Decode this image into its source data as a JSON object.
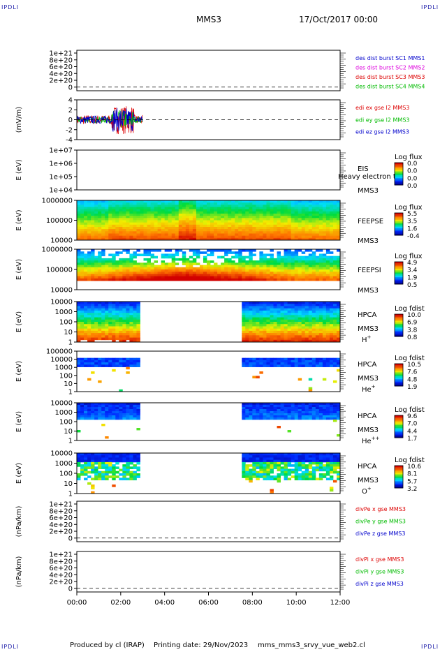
{
  "corner_label": "IPDLI",
  "header": {
    "spacecraft": "MMS3",
    "date": "17/Oct/2017 00:00"
  },
  "footer": {
    "producer": "Produced by cl (IRAP)",
    "printing": "Printing date: 29/Nov/2023",
    "script": "mms_mms3_srvy_vue_web2.cl"
  },
  "colors": {
    "red": "#dd0000",
    "green": "#00bb00",
    "blue": "#0000cc",
    "magenta": "#dd00dd"
  },
  "chart_data": [
    {
      "type": "line",
      "ylabel": "",
      "ticks": [
        "1e+21",
        "8e+20",
        "6e+20",
        "4e+20",
        "2e+20",
        "0"
      ],
      "series": [
        {
          "name": "des dist burst SC1 MMS1",
          "color": "#0000cc"
        },
        {
          "name": "des dist burst SC2 MMS2",
          "color": "#dd00dd"
        },
        {
          "name": "des dist burst SC3 MMS3",
          "color": "#dd0000"
        },
        {
          "name": "des dist burst SC4 MMS4",
          "color": "#00bb00"
        }
      ]
    },
    {
      "type": "line",
      "ylabel": "(mV/m)",
      "ticks": [
        "4",
        "2",
        "0",
        "-2",
        "-4"
      ],
      "ylim": [
        -5,
        5
      ],
      "x_range_hours": [
        0.0,
        3.0
      ],
      "series": [
        {
          "name": "edi ex gse l2 MMS3",
          "color": "#dd0000"
        },
        {
          "name": "edi ey gse l2 MMS3",
          "color": "#00bb00"
        },
        {
          "name": "edi ez gse l2 MMS3",
          "color": "#0000cc"
        }
      ]
    },
    {
      "type": "heatmap",
      "ylabel": "E (eV)",
      "ticks": [
        "1e+07",
        "1e+06",
        "1e+05",
        "1e+04"
      ],
      "instrument": [
        "EIS",
        "MMS3"
      ],
      "overlay": "Heavy electron to",
      "colorbar": {
        "title": "Log flux",
        "labels": [
          "0.0",
          "0.0",
          "0.0",
          "0.0"
        ]
      }
    },
    {
      "type": "heatmap",
      "ylabel": "E (eV)",
      "ticks": [
        "1000000",
        "100000",
        "10000"
      ],
      "instrument": [
        "FEEPSE",
        "MMS3"
      ],
      "colorbar": {
        "title": "Log flux",
        "labels": [
          "5.5",
          "3.5",
          "1.6",
          "-0.4"
        ]
      }
    },
    {
      "type": "heatmap",
      "ylabel": "E (eV)",
      "ticks": [
        "1000000",
        "100000",
        "10000"
      ],
      "instrument": [
        "FEEPSI",
        "MMS3"
      ],
      "colorbar": {
        "title": "Log flux",
        "labels": [
          "4.9",
          "3.4",
          "1.9",
          "0.5"
        ]
      }
    },
    {
      "type": "heatmap",
      "ylabel": "E (eV)",
      "ticks": [
        "10000",
        "1000",
        "100",
        "10",
        "1"
      ],
      "instrument": [
        "HPCA",
        "MMS3"
      ],
      "species": "H",
      "species_sup": "+",
      "data_gaps_hours": [
        [
          2.85,
          7.6
        ]
      ],
      "colorbar": {
        "title": "Log fdist",
        "labels": [
          "10.0",
          "6.9",
          "3.8",
          "0.8"
        ]
      }
    },
    {
      "type": "heatmap",
      "ylabel": "E (eV)",
      "ticks": [
        "100000",
        "10000",
        "1000",
        "100",
        "10",
        "1"
      ],
      "instrument": [
        "HPCA",
        "MMS3"
      ],
      "species": "He",
      "species_sup": "+",
      "colorbar": {
        "title": "Log fdist",
        "labels": [
          "10.5",
          "7.6",
          "4.8",
          "1.9"
        ]
      }
    },
    {
      "type": "heatmap",
      "ylabel": "E (eV)",
      "ticks": [
        "10000",
        "1000",
        "100",
        "10",
        "1"
      ],
      "instrument": [
        "HPCA",
        "MMS3"
      ],
      "species": "He",
      "species_sup": "++",
      "colorbar": {
        "title": "Log fdist",
        "labels": [
          "9.6",
          "7.0",
          "4.4",
          "1.7"
        ]
      }
    },
    {
      "type": "heatmap",
      "ylabel": "E (eV)",
      "ticks": [
        "10000",
        "1000",
        "100",
        "10",
        "1"
      ],
      "instrument": [
        "HPCA",
        "MMS3"
      ],
      "species": "O",
      "species_sup": "+",
      "colorbar": {
        "title": "Log fdist",
        "labels": [
          "10.6",
          "8.1",
          "5.7",
          "3.2"
        ]
      }
    },
    {
      "type": "line",
      "ylabel": "(nPa/km)",
      "ticks": [
        "1e+21",
        "8e+20",
        "6e+20",
        "4e+20",
        "2e+20",
        "0"
      ],
      "series": [
        {
          "name": "divPe x gse MMS3",
          "color": "#dd0000"
        },
        {
          "name": "divPe y gse MMS3",
          "color": "#00bb00"
        },
        {
          "name": "divPe z gse MMS3",
          "color": "#0000cc"
        }
      ]
    },
    {
      "type": "line",
      "ylabel": "(nPa/km)",
      "ticks": [
        "1e+21",
        "8e+20",
        "6e+20",
        "4e+20",
        "2e+20",
        "0"
      ],
      "series": [
        {
          "name": "divPi x gse MMS3",
          "color": "#dd0000"
        },
        {
          "name": "divPi y gse MMS3",
          "color": "#00bb00"
        },
        {
          "name": "divPi z gse MMS3",
          "color": "#0000cc"
        }
      ]
    }
  ],
  "x_axis": {
    "ticks": [
      "00:00",
      "02:00",
      "04:00",
      "06:00",
      "08:00",
      "10:00",
      "12:00"
    ],
    "range_hours": [
      0,
      12
    ]
  }
}
